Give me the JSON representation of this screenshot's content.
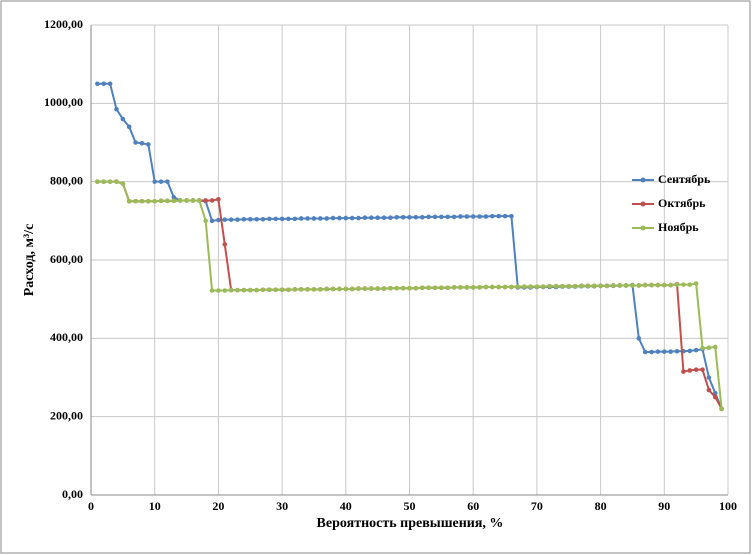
{
  "chart_data": {
    "type": "line",
    "xlabel": "Вероятность превышения, %",
    "ylabel": "Расход, м³/с",
    "x": [
      1,
      2,
      3,
      4,
      5,
      6,
      7,
      8,
      9,
      10,
      11,
      12,
      13,
      14,
      15,
      16,
      17,
      18,
      19,
      20,
      21,
      22,
      23,
      24,
      25,
      26,
      27,
      28,
      29,
      30,
      31,
      32,
      33,
      34,
      35,
      36,
      37,
      38,
      39,
      40,
      41,
      42,
      43,
      44,
      45,
      46,
      47,
      48,
      49,
      50,
      51,
      52,
      53,
      54,
      55,
      56,
      57,
      58,
      59,
      60,
      61,
      62,
      63,
      64,
      65,
      66,
      67,
      68,
      69,
      70,
      71,
      72,
      73,
      74,
      75,
      76,
      77,
      78,
      79,
      80,
      81,
      82,
      83,
      84,
      85,
      86,
      87,
      88,
      89,
      90,
      91,
      92,
      93,
      94,
      95,
      96,
      97,
      98,
      99
    ],
    "series": [
      {
        "name": "Сентябрь",
        "color": "#4f81bd",
        "values": [
          1050,
          1050,
          1050,
          985,
          960,
          940,
          900,
          898,
          895,
          800,
          800,
          800,
          760,
          752,
          752,
          752,
          752,
          750,
          700,
          702,
          703,
          703,
          703,
          704,
          704,
          704,
          704,
          705,
          705,
          705,
          705,
          705,
          706,
          706,
          706,
          706,
          706,
          707,
          707,
          707,
          707,
          707,
          708,
          708,
          708,
          708,
          708,
          709,
          709,
          709,
          709,
          709,
          710,
          710,
          710,
          710,
          710,
          711,
          711,
          711,
          711,
          711,
          712,
          712,
          712,
          712,
          530,
          530,
          530,
          531,
          531,
          531,
          531,
          532,
          532,
          532,
          533,
          533,
          533,
          534,
          534,
          534,
          535,
          535,
          536,
          400,
          365,
          365,
          366,
          366,
          366,
          367,
          367,
          368,
          370,
          372,
          300,
          260,
          220
        ]
      },
      {
        "name": "Октябрь",
        "color": "#c0504d",
        "values": [
          800,
          800,
          800,
          800,
          795,
          750,
          750,
          750,
          750,
          750,
          751,
          751,
          751,
          752,
          752,
          752,
          752,
          752,
          752,
          755,
          640,
          523,
          523,
          523,
          523,
          523,
          524,
          524,
          524,
          524,
          524,
          525,
          525,
          525,
          525,
          525,
          526,
          526,
          526,
          526,
          526,
          527,
          527,
          527,
          527,
          527,
          528,
          528,
          528,
          528,
          528,
          529,
          529,
          529,
          529,
          529,
          530,
          530,
          530,
          530,
          530,
          531,
          531,
          531,
          531,
          531,
          532,
          532,
          532,
          532,
          532,
          533,
          533,
          533,
          533,
          533,
          534,
          534,
          534,
          534,
          534,
          535,
          535,
          535,
          535,
          535,
          536,
          536,
          536,
          536,
          536,
          538,
          315,
          318,
          320,
          320,
          268,
          250,
          220
        ]
      },
      {
        "name": "Ноябрь",
        "color": "#9bbb59",
        "values": [
          800,
          800,
          800,
          800,
          795,
          750,
          750,
          750,
          750,
          750,
          751,
          751,
          751,
          752,
          752,
          752,
          752,
          700,
          522,
          522,
          522,
          523,
          523,
          523,
          523,
          523,
          524,
          524,
          524,
          524,
          524,
          525,
          525,
          525,
          525,
          525,
          526,
          526,
          526,
          526,
          526,
          527,
          527,
          527,
          527,
          527,
          528,
          528,
          528,
          528,
          528,
          529,
          529,
          529,
          529,
          529,
          530,
          530,
          530,
          530,
          530,
          531,
          531,
          531,
          531,
          531,
          532,
          532,
          532,
          532,
          532,
          533,
          533,
          533,
          533,
          533,
          534,
          534,
          534,
          534,
          534,
          535,
          535,
          535,
          535,
          535,
          536,
          536,
          536,
          536,
          536,
          537,
          537,
          537,
          540,
          375,
          376,
          378,
          220
        ]
      }
    ],
    "xlim": [
      0,
      100
    ],
    "xticks": [
      0,
      10,
      20,
      30,
      40,
      50,
      60,
      70,
      80,
      90,
      100
    ],
    "ylim": [
      0,
      1200
    ],
    "yticks": [
      {
        "value": 0,
        "label": "0,00"
      },
      {
        "value": 200,
        "label": "200,00"
      },
      {
        "value": 400,
        "label": "400,00"
      },
      {
        "value": 600,
        "label": "600,00"
      },
      {
        "value": 800,
        "label": "800,00"
      },
      {
        "value": 1000,
        "label": "1000,00"
      },
      {
        "value": 1200,
        "label": "1200,00"
      }
    ],
    "grid": true,
    "legend": "right",
    "markers": true
  }
}
